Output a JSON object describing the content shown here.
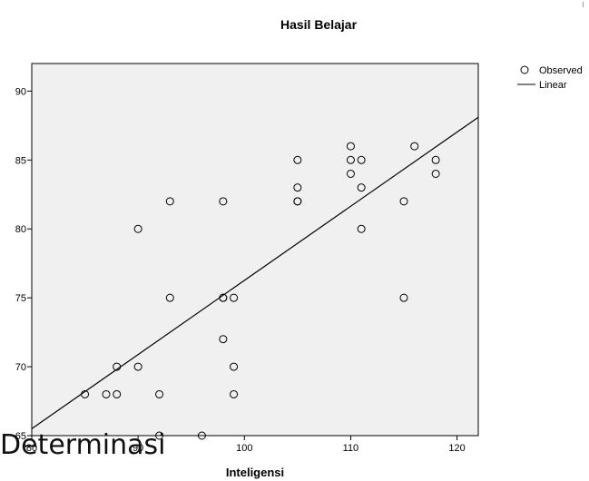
{
  "chart_data": {
    "type": "scatter",
    "title": "Hasil Belajar",
    "xlabel": "Inteligensi",
    "ylabel": "",
    "xlim": [
      80,
      122
    ],
    "ylim": [
      65,
      92
    ],
    "x_ticks": [
      80,
      90,
      100,
      110,
      120
    ],
    "y_ticks": [
      65,
      70,
      75,
      80,
      85,
      90
    ],
    "x_tick_labels": [
      "80",
      "90",
      "100",
      "110",
      "120"
    ],
    "y_tick_labels": [
      "65",
      "70",
      "75",
      "80",
      "85",
      "90"
    ],
    "grid": false,
    "plot_background": "#f0f0f0",
    "legend": {
      "placement": "top-right, outside plot",
      "entries": [
        {
          "label": "Observed",
          "symbol": "open-circle"
        },
        {
          "label": "Linear",
          "symbol": "line"
        }
      ]
    },
    "series": [
      {
        "name": "Observed",
        "points": [
          {
            "x": 85,
            "y": 68
          },
          {
            "x": 87,
            "y": 68
          },
          {
            "x": 88,
            "y": 68
          },
          {
            "x": 88,
            "y": 70
          },
          {
            "x": 90,
            "y": 70
          },
          {
            "x": 90,
            "y": 80
          },
          {
            "x": 92,
            "y": 68
          },
          {
            "x": 92,
            "y": 65
          },
          {
            "x": 93,
            "y": 82
          },
          {
            "x": 93,
            "y": 75
          },
          {
            "x": 96,
            "y": 65
          },
          {
            "x": 98,
            "y": 82
          },
          {
            "x": 98,
            "y": 75
          },
          {
            "x": 98,
            "y": 75
          },
          {
            "x": 98,
            "y": 72
          },
          {
            "x": 99,
            "y": 75
          },
          {
            "x": 99,
            "y": 70
          },
          {
            "x": 99,
            "y": 68
          },
          {
            "x": 105,
            "y": 85
          },
          {
            "x": 105,
            "y": 83
          },
          {
            "x": 105,
            "y": 82
          },
          {
            "x": 105,
            "y": 82
          },
          {
            "x": 110,
            "y": 86
          },
          {
            "x": 110,
            "y": 85
          },
          {
            "x": 110,
            "y": 84
          },
          {
            "x": 111,
            "y": 85
          },
          {
            "x": 111,
            "y": 83
          },
          {
            "x": 111,
            "y": 80
          },
          {
            "x": 115,
            "y": 82
          },
          {
            "x": 115,
            "y": 75
          },
          {
            "x": 116,
            "y": 86
          },
          {
            "x": 118,
            "y": 85
          },
          {
            "x": 118,
            "y": 84
          }
        ]
      },
      {
        "name": "Linear",
        "line": [
          {
            "x": 80,
            "y": 65.5
          },
          {
            "x": 122,
            "y": 88.1
          }
        ]
      }
    ]
  },
  "overlay": {
    "text": "Determinasi"
  },
  "colors": {
    "marker_stroke": "#000000",
    "line": "#000000",
    "axis": "#000000"
  }
}
